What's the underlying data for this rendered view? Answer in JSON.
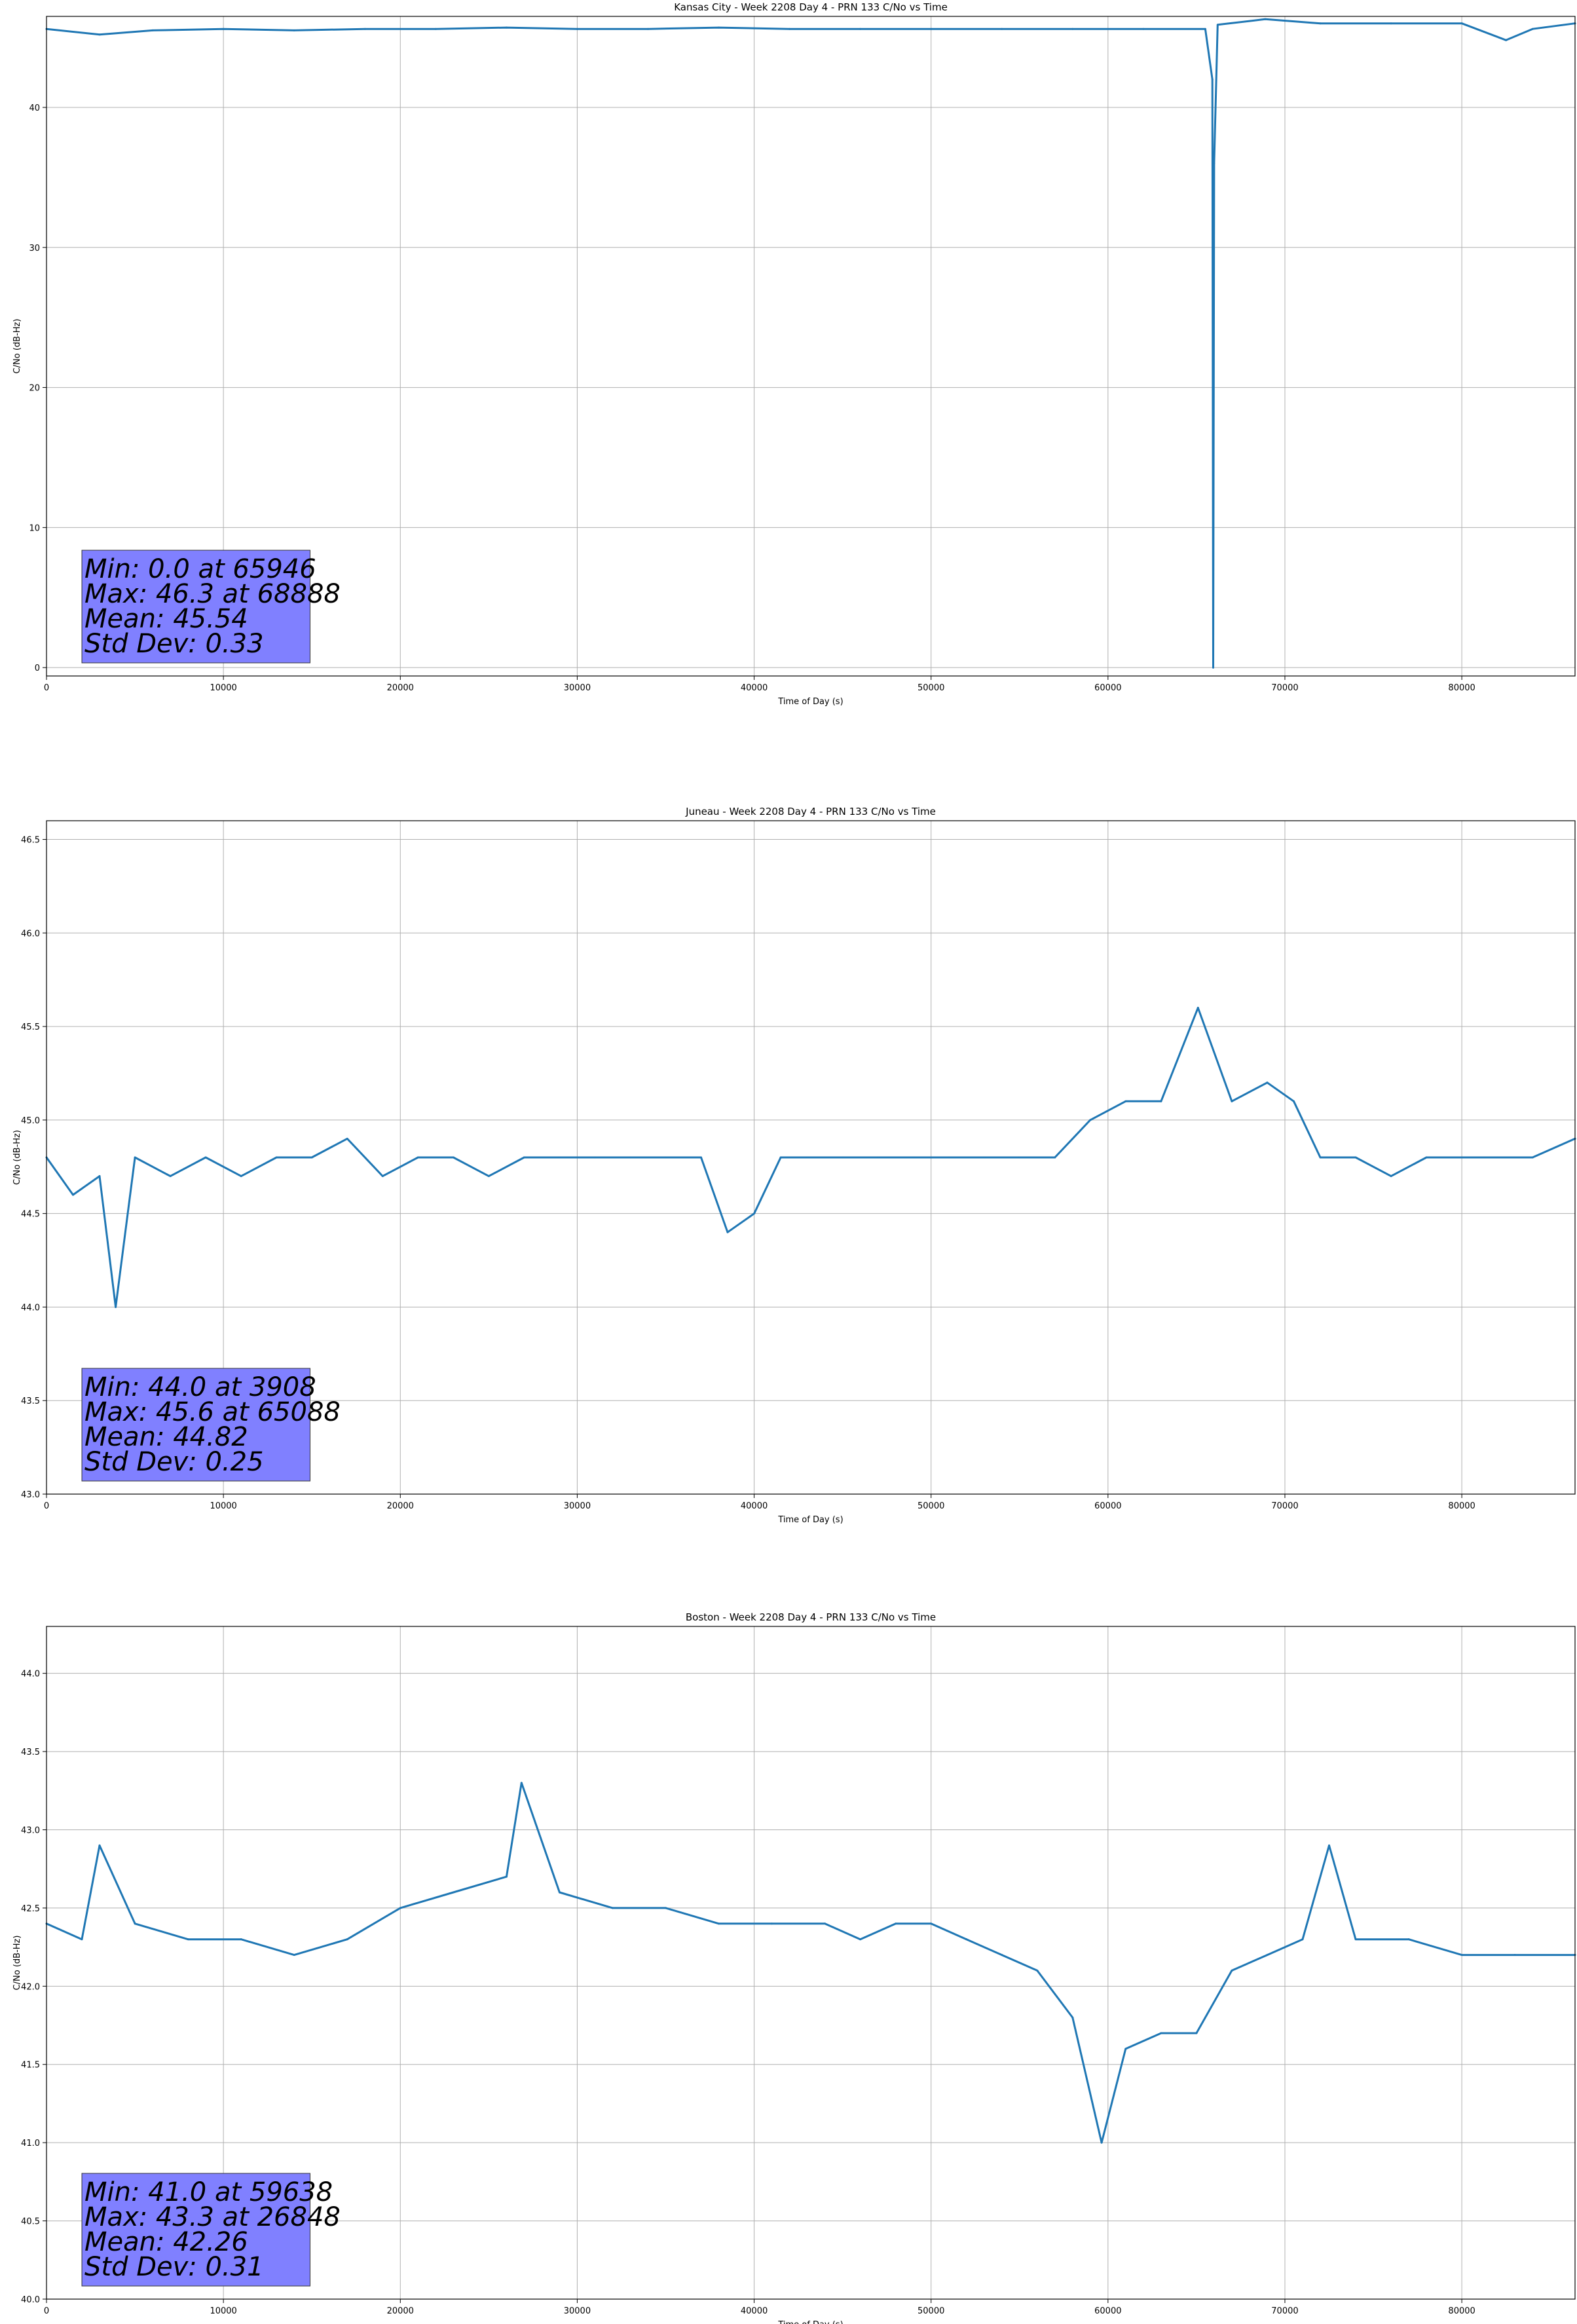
{
  "colors": {
    "line": "#1f77b4",
    "grid": "#b0b0b0",
    "stats_box": "#8080ff"
  },
  "chart_data": [
    {
      "type": "line",
      "title": "Kansas City - Week 2208 Day 4 - PRN 133 C/No vs Time",
      "xlabel": "Time of Day (s)",
      "ylabel": "C/No (dB-Hz)",
      "xlim": [
        0,
        86400
      ],
      "ylim": [
        -0.6,
        46.5
      ],
      "xticks": [
        0,
        10000,
        20000,
        30000,
        40000,
        50000,
        60000,
        70000,
        80000
      ],
      "yticks": [
        0,
        10,
        20,
        30,
        40
      ],
      "ytick_labels": [
        "0",
        "10",
        "20",
        "30",
        "40"
      ],
      "grid": true,
      "series": [
        {
          "x": [
            0,
            3000,
            6000,
            10000,
            14000,
            18000,
            22000,
            26000,
            30000,
            34000,
            38000,
            42000,
            46000,
            50000,
            54000,
            58000,
            62000,
            65500,
            65900,
            65946,
            66000,
            66200,
            68888,
            72000,
            76000,
            80000,
            82500,
            84000,
            86400
          ],
          "y": [
            45.6,
            45.2,
            45.5,
            45.6,
            45.5,
            45.6,
            45.6,
            45.7,
            45.6,
            45.6,
            45.7,
            45.6,
            45.6,
            45.6,
            45.6,
            45.6,
            45.6,
            45.6,
            42.0,
            0.0,
            36.0,
            45.9,
            46.3,
            46.0,
            46.0,
            46.0,
            44.8,
            45.6,
            46.0
          ]
        }
      ],
      "stats": [
        "Min: 0.0 at 65946",
        "Max: 46.3 at 68888",
        "Mean: 45.54",
        "Std Dev: 0.33"
      ]
    },
    {
      "type": "line",
      "title": "Juneau - Week 2208 Day 4 - PRN 133 C/No vs Time",
      "xlabel": "Time of Day (s)",
      "ylabel": "C/No (dB-Hz)",
      "xlim": [
        0,
        86400
      ],
      "ylim": [
        43.0,
        46.6
      ],
      "xticks": [
        0,
        10000,
        20000,
        30000,
        40000,
        50000,
        60000,
        70000,
        80000
      ],
      "yticks": [
        43.0,
        43.5,
        44.0,
        44.5,
        45.0,
        45.5,
        46.0,
        46.5
      ],
      "ytick_labels": [
        "43.0",
        "43.5",
        "44.0",
        "44.5",
        "45.0",
        "45.5",
        "46.0",
        "46.5"
      ],
      "grid": true,
      "series": [
        {
          "x": [
            0,
            1500,
            3000,
            3908,
            5000,
            7000,
            9000,
            11000,
            13000,
            15000,
            17000,
            19000,
            21000,
            23000,
            25000,
            27000,
            29000,
            31000,
            33000,
            35000,
            37000,
            38500,
            40000,
            41500,
            43000,
            45000,
            47000,
            49000,
            51000,
            53000,
            55000,
            57000,
            59000,
            61000,
            63000,
            65088,
            67000,
            69000,
            70500,
            72000,
            74000,
            76000,
            78000,
            80000,
            82000,
            84000,
            86400
          ],
          "y": [
            44.8,
            44.6,
            44.7,
            44.0,
            44.8,
            44.7,
            44.8,
            44.7,
            44.8,
            44.8,
            44.9,
            44.7,
            44.8,
            44.8,
            44.7,
            44.8,
            44.8,
            44.8,
            44.8,
            44.8,
            44.8,
            44.4,
            44.5,
            44.8,
            44.8,
            44.8,
            44.8,
            44.8,
            44.8,
            44.8,
            44.8,
            44.8,
            45.0,
            45.1,
            45.1,
            45.6,
            45.1,
            45.2,
            45.1,
            44.8,
            44.8,
            44.7,
            44.8,
            44.8,
            44.8,
            44.8,
            44.9
          ]
        }
      ],
      "stats": [
        "Min: 44.0 at 3908",
        "Max: 45.6 at 65088",
        "Mean: 44.82",
        "Std Dev: 0.25"
      ]
    },
    {
      "type": "line",
      "title": "Boston - Week 2208 Day 4 - PRN 133 C/No vs Time",
      "xlabel": "Time of Day (s)",
      "ylabel": "C/No (dB-Hz)",
      "xlim": [
        0,
        86400
      ],
      "ylim": [
        40.0,
        44.3
      ],
      "xticks": [
        0,
        10000,
        20000,
        30000,
        40000,
        50000,
        60000,
        70000,
        80000
      ],
      "yticks": [
        40.0,
        40.5,
        41.0,
        41.5,
        42.0,
        42.5,
        43.0,
        43.5,
        44.0
      ],
      "ytick_labels": [
        "40.0",
        "40.5",
        "41.0",
        "41.5",
        "42.0",
        "42.5",
        "43.0",
        "43.5",
        "44.0"
      ],
      "grid": true,
      "series": [
        {
          "x": [
            0,
            2000,
            3000,
            5000,
            8000,
            11000,
            14000,
            17000,
            20000,
            23000,
            26000,
            26848,
            29000,
            32000,
            35000,
            38000,
            41000,
            44000,
            46000,
            48000,
            50000,
            52000,
            54000,
            56000,
            58000,
            59638,
            61000,
            63000,
            65000,
            67000,
            69000,
            71000,
            72500,
            74000,
            77000,
            80000,
            83000,
            86400
          ],
          "y": [
            42.4,
            42.3,
            42.9,
            42.4,
            42.3,
            42.3,
            42.2,
            42.3,
            42.5,
            42.6,
            42.7,
            43.3,
            42.6,
            42.5,
            42.5,
            42.4,
            42.4,
            42.4,
            42.3,
            42.4,
            42.4,
            42.3,
            42.2,
            42.1,
            41.8,
            41.0,
            41.6,
            41.7,
            41.7,
            42.1,
            42.2,
            42.3,
            42.9,
            42.3,
            42.3,
            42.2,
            42.2,
            42.2
          ]
        }
      ],
      "stats": [
        "Min: 41.0 at 59638",
        "Max: 43.3 at 26848",
        "Mean: 42.26",
        "Std Dev: 0.31"
      ]
    }
  ]
}
